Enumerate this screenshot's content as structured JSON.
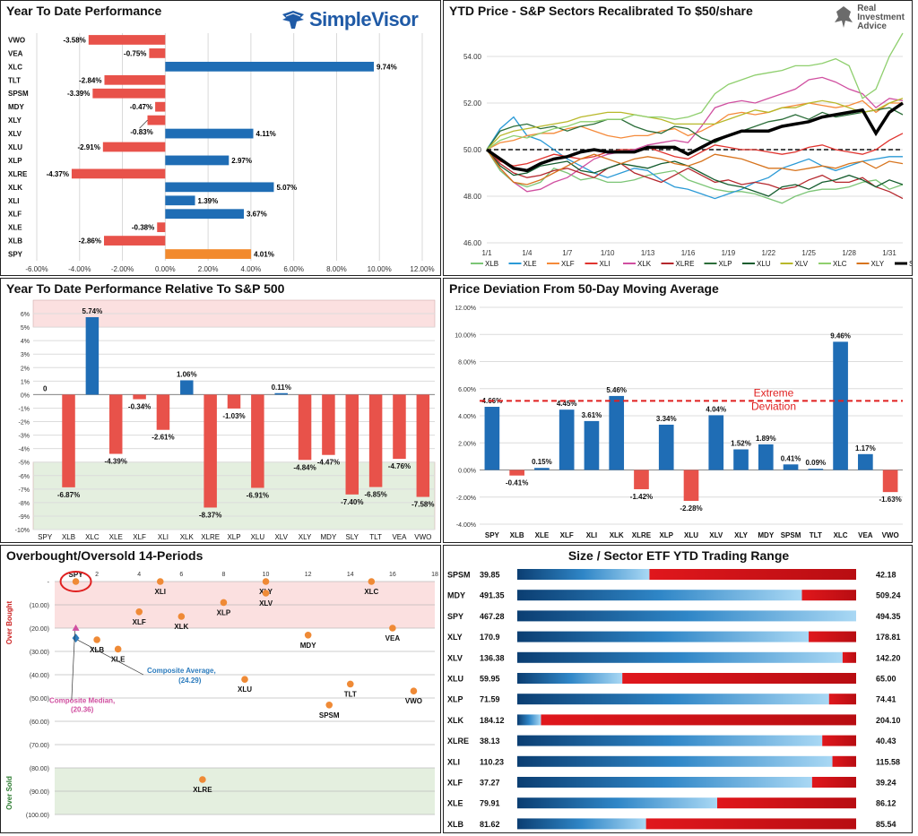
{
  "panels": {
    "ytd": {
      "title": "Year To Date Performance"
    },
    "price": {
      "title": "YTD Price - S&P Sectors Recalibrated To $50/share"
    },
    "rel": {
      "title": "Year To Date Performance Relative To S&P 500"
    },
    "dev": {
      "title": "Price Deviation From 50-Day Moving Average"
    },
    "obos": {
      "title": "Overbought/Oversold 14-Periods"
    },
    "range": {
      "title": "Size / Sector ETF YTD Trading Range"
    }
  },
  "logos": {
    "simplevisor": "SimpleVisor",
    "ria": [
      "Real",
      "Investment",
      "Advice"
    ]
  },
  "chart_data": [
    {
      "id": "ytd",
      "type": "bar",
      "orientation": "horizontal",
      "title": "Year To Date Performance",
      "categories": [
        "VWO",
        "VEA",
        "XLC",
        "TLT",
        "SPSM",
        "MDY",
        "XLY",
        "XLV",
        "XLU",
        "XLP",
        "XLRE",
        "XLK",
        "XLI",
        "XLF",
        "XLE",
        "XLB",
        "SPY"
      ],
      "values": [
        -3.58,
        -0.75,
        9.74,
        -2.84,
        -3.39,
        -0.47,
        -0.83,
        4.11,
        -2.91,
        2.97,
        -4.37,
        5.07,
        1.39,
        3.67,
        -0.38,
        -2.86,
        4.01
      ],
      "labels": [
        "-3.58%",
        "-0.75%",
        "9.74%",
        "-2.84%",
        "-3.39%",
        "-0.47%",
        "-0.83%",
        "4.11%",
        "-2.91%",
        "2.97%",
        "-4.37%",
        "5.07%",
        "1.39%",
        "3.67%",
        "-0.38%",
        "-2.86%",
        "4.01%"
      ],
      "xlim": [
        -6,
        12
      ],
      "xticks": [
        "-6.00%",
        "-4.00%",
        "-2.00%",
        "0.00%",
        "2.00%",
        "4.00%",
        "6.00%",
        "8.00%",
        "10.00%",
        "12.00%"
      ],
      "colors": {
        "positive": "#1f6db5",
        "negative": "#e8524a",
        "highlight": "#f28a2e"
      },
      "grid": true
    },
    {
      "id": "price",
      "type": "line",
      "title": "YTD Price - S&P Sectors Recalibrated To $50/share",
      "x": [
        "1/1",
        "1/2",
        "1/3",
        "1/4",
        "1/5",
        "1/6",
        "1/7",
        "1/8",
        "1/9",
        "1/10",
        "1/11",
        "1/12",
        "1/13",
        "1/14",
        "1/15",
        "1/16",
        "1/17",
        "1/18",
        "1/19",
        "1/20",
        "1/21",
        "1/22",
        "1/23",
        "1/24",
        "1/25",
        "1/26",
        "1/27",
        "1/28",
        "1/29",
        "1/30",
        "1/31",
        "2/1"
      ],
      "xticks": [
        "1/1",
        "1/4",
        "1/7",
        "1/10",
        "1/13",
        "1/16",
        "1/19",
        "1/22",
        "1/25",
        "1/28",
        "1/31"
      ],
      "ylim": [
        46,
        55
      ],
      "yticks": [
        "46.00",
        "48.00",
        "50.00",
        "52.00",
        "54.00"
      ],
      "reference_line": 50,
      "legend_position": "bottom",
      "series": [
        {
          "name": "XLB",
          "color": "#7cc576",
          "values": [
            50,
            49.1,
            48.6,
            48.4,
            48.6,
            49.2,
            49.0,
            48.7,
            48.8,
            48.6,
            48.6,
            48.7,
            48.9,
            49.0,
            49.1,
            48.7,
            48.5,
            48.3,
            48.2,
            48.2,
            48.1,
            47.9,
            47.7,
            48.0,
            48.2,
            48.3,
            48.3,
            48.4,
            48.6,
            48.7,
            48.3,
            48.5
          ]
        },
        {
          "name": "XLE",
          "color": "#2b9ad6",
          "values": [
            50,
            50.9,
            51.4,
            50.6,
            50.4,
            50.0,
            49.6,
            49.3,
            49.0,
            48.8,
            49.0,
            49.2,
            49.1,
            48.7,
            48.4,
            48.3,
            48.1,
            47.9,
            48.1,
            48.3,
            48.6,
            48.8,
            49.2,
            49.4,
            49.6,
            49.3,
            49.1,
            49.3,
            49.5,
            49.6,
            49.7,
            49.7
          ]
        },
        {
          "name": "XLF",
          "color": "#f58a3a",
          "values": [
            50,
            50.3,
            50.4,
            50.6,
            50.7,
            50.7,
            50.9,
            51.0,
            50.8,
            50.6,
            50.5,
            50.6,
            50.6,
            50.8,
            50.9,
            50.6,
            50.8,
            51.1,
            51.5,
            51.6,
            51.5,
            51.6,
            51.8,
            51.9,
            52.0,
            51.9,
            51.8,
            51.9,
            52.1,
            51.6,
            52.0,
            52.0
          ]
        },
        {
          "name": "XLI",
          "color": "#e0342f",
          "values": [
            50,
            49.5,
            49.3,
            49.4,
            49.6,
            49.8,
            49.7,
            49.6,
            49.7,
            49.9,
            50.0,
            50.0,
            50.1,
            49.9,
            49.7,
            49.6,
            49.9,
            50.2,
            50.1,
            50.0,
            50.0,
            49.9,
            49.8,
            49.9,
            50.1,
            50.2,
            50.0,
            49.9,
            49.8,
            50.0,
            50.4,
            50.7
          ]
        },
        {
          "name": "XLK",
          "color": "#d04fa0",
          "values": [
            50,
            49.2,
            48.6,
            48.2,
            48.3,
            48.6,
            48.8,
            49.2,
            49.6,
            49.8,
            49.9,
            50.0,
            50.2,
            50.3,
            50.4,
            50.3,
            51.0,
            51.8,
            52.0,
            52.1,
            52.0,
            52.2,
            52.4,
            52.6,
            53.0,
            53.1,
            52.9,
            52.6,
            52.4,
            51.8,
            52.2,
            52.1
          ]
        },
        {
          "name": "XLRE",
          "color": "#b5272d",
          "values": [
            50,
            49.4,
            49.0,
            48.8,
            48.9,
            49.1,
            49.2,
            49.0,
            48.8,
            49.2,
            49.4,
            49.0,
            48.8,
            48.6,
            48.9,
            49.2,
            48.9,
            48.6,
            48.7,
            48.5,
            48.6,
            48.5,
            48.3,
            48.4,
            48.7,
            48.9,
            48.6,
            48.6,
            48.8,
            48.4,
            48.2,
            47.9
          ]
        },
        {
          "name": "XLP",
          "color": "#2c6e3a",
          "values": [
            50,
            50.8,
            51.0,
            51.1,
            50.9,
            51.0,
            50.8,
            51.0,
            51.1,
            51.3,
            51.3,
            51.0,
            50.8,
            50.7,
            51.0,
            50.9,
            50.5,
            50.3,
            50.6,
            50.8,
            51.0,
            51.2,
            51.3,
            51.5,
            51.3,
            51.6,
            51.4,
            51.5,
            51.6,
            51.7,
            51.8,
            51.5
          ]
        },
        {
          "name": "XLU",
          "color": "#145c2e",
          "values": [
            50,
            49.3,
            48.9,
            49.0,
            49.3,
            49.4,
            49.5,
            49.1,
            49.0,
            49.2,
            49.4,
            49.3,
            49.2,
            49.4,
            49.5,
            49.3,
            49.0,
            48.7,
            48.5,
            48.4,
            48.2,
            48.0,
            48.4,
            48.5,
            48.3,
            48.6,
            48.7,
            48.9,
            48.7,
            48.4,
            48.7,
            48.5
          ]
        },
        {
          "name": "XLV",
          "color": "#b8b82a",
          "values": [
            50,
            50.6,
            50.8,
            50.9,
            51.0,
            51.1,
            51.2,
            51.4,
            51.5,
            51.6,
            51.6,
            51.5,
            51.4,
            51.3,
            51.1,
            51.1,
            51.1,
            51.1,
            51.3,
            51.5,
            51.7,
            51.6,
            51.8,
            51.8,
            52.0,
            52.1,
            52.0,
            51.8,
            51.6,
            51.7,
            52.0,
            52.2
          ]
        },
        {
          "name": "XLC",
          "color": "#8fcf6e",
          "values": [
            50,
            50.4,
            50.6,
            50.5,
            50.7,
            50.9,
            51.0,
            51.2,
            51.2,
            51.3,
            51.3,
            51.5,
            51.4,
            51.4,
            51.3,
            51.4,
            51.6,
            52.4,
            52.8,
            53.0,
            53.2,
            53.3,
            53.4,
            53.6,
            53.6,
            53.7,
            53.9,
            53.6,
            52.2,
            52.6,
            54.0,
            55.0
          ]
        },
        {
          "name": "XLY",
          "color": "#d7741e",
          "values": [
            50,
            49.2,
            48.6,
            48.5,
            48.7,
            49.0,
            49.3,
            49.6,
            49.8,
            49.6,
            49.4,
            49.6,
            49.7,
            49.6,
            49.4,
            49.3,
            49.5,
            49.8,
            49.7,
            49.6,
            49.4,
            49.2,
            49.2,
            49.1,
            49.2,
            49.3,
            49.2,
            49.4,
            49.5,
            49.2,
            49.5,
            49.4
          ]
        },
        {
          "name": "SPY",
          "color": "#000000",
          "values": [
            50,
            49.6,
            49.2,
            49.1,
            49.4,
            49.6,
            49.7,
            49.9,
            50.0,
            49.9,
            49.9,
            49.9,
            50.1,
            50.1,
            50.1,
            49.8,
            50.1,
            50.4,
            50.6,
            50.8,
            50.8,
            50.8,
            51.0,
            51.1,
            51.2,
            51.4,
            51.5,
            51.6,
            51.7,
            50.7,
            51.6,
            52.0
          ]
        }
      ]
    },
    {
      "id": "rel",
      "type": "bar",
      "title": "Year To Date Performance Relative To S&P 500",
      "categories": [
        "SPY",
        "XLB",
        "XLC",
        "XLE",
        "XLF",
        "XLI",
        "XLK",
        "XLRE",
        "XLP",
        "XLU",
        "XLV",
        "XLY",
        "MDY",
        "SLY",
        "TLT",
        "VEA",
        "VWO"
      ],
      "values": [
        0,
        -6.87,
        5.74,
        -4.39,
        -0.34,
        -2.61,
        1.06,
        -8.37,
        -1.03,
        -6.91,
        0.11,
        -4.84,
        -4.47,
        -7.4,
        -6.85,
        -4.76,
        -7.58
      ],
      "labels": [
        "0",
        "-6.87%",
        "5.74%",
        "-4.39%",
        "-0.34%",
        "-2.61%",
        "1.06%",
        "-8.37%",
        "-1.03%",
        "-6.91%",
        "0.11%",
        "-4.84%",
        "-4.47%",
        "-7.40%",
        "-6.85%",
        "-4.76%",
        "-7.58%"
      ],
      "ylim": [
        -10,
        7
      ],
      "yticks": [
        "6%",
        "5%",
        "4%",
        "3%",
        "2%",
        "1%",
        "0%",
        "-1%",
        "-2%",
        "-3%",
        "-4%",
        "-5%",
        "-6%",
        "-7%",
        "-8%",
        "-9%",
        "-10%"
      ],
      "bands": [
        {
          "from": 5,
          "to": 7,
          "color": "#fbe0e0"
        },
        {
          "from": -10,
          "to": -5,
          "color": "#e4efdf"
        }
      ],
      "colors": {
        "positive": "#1f6db5",
        "negative": "#e8524a"
      }
    },
    {
      "id": "dev",
      "type": "bar",
      "title": "Price Deviation From 50-Day Moving Average",
      "categories": [
        "SPY",
        "XLB",
        "XLE",
        "XLF",
        "XLI",
        "XLK",
        "XLRE",
        "XLP",
        "XLU",
        "XLV",
        "XLY",
        "MDY",
        "SPSM",
        "TLT",
        "XLC",
        "VEA",
        "VWO"
      ],
      "values": [
        4.66,
        -0.41,
        0.15,
        4.45,
        3.61,
        5.46,
        -1.42,
        3.34,
        -2.28,
        4.04,
        1.52,
        1.89,
        0.41,
        0.09,
        9.46,
        1.17,
        -1.63
      ],
      "labels": [
        "4.66%",
        "-0.41%",
        "0.15%",
        "4.45%",
        "3.61%",
        "5.46%",
        "-1.42%",
        "3.34%",
        "-2.28%",
        "4.04%",
        "1.52%",
        "1.89%",
        "0.41%",
        "0.09%",
        "9.46%",
        "1.17%",
        "-1.63%"
      ],
      "ylim": [
        -4,
        12
      ],
      "yticks": [
        "12.00%",
        "10.00%",
        "8.00%",
        "6.00%",
        "4.00%",
        "2.00%",
        "0.00%",
        "-2.00%",
        "-4.00%"
      ],
      "threshold": {
        "value": 5.1,
        "label": [
          "Extreme",
          "Deviation"
        ],
        "color": "#e02020"
      },
      "colors": {
        "positive": "#1f6db5",
        "negative": "#e8524a"
      }
    },
    {
      "id": "obos",
      "type": "scatter",
      "title": "Overbought/Oversold 14-Periods",
      "xlim": [
        0,
        18
      ],
      "xticks": [
        "2",
        "4",
        "6",
        "8",
        "10",
        "12",
        "14",
        "16",
        "18"
      ],
      "ylim": [
        0,
        100
      ],
      "yticks": [
        "-",
        "(10.00)",
        "(20.00)",
        "(30.00)",
        "(40.00)",
        "(50.00)",
        "(60.00)",
        "(70.00)",
        "(80.00)",
        "(90.00)",
        "(100.00)"
      ],
      "side_labels": {
        "top": "Over Bought",
        "bottom": "Over Sold"
      },
      "bands": [
        {
          "from": 0,
          "to": 20,
          "color": "#fbe0e0"
        },
        {
          "from": 80,
          "to": 100,
          "color": "#e4efdf"
        }
      ],
      "points": [
        {
          "label": "SPY",
          "x": 1,
          "y": 0
        },
        {
          "label": "XLI",
          "x": 5,
          "y": 0
        },
        {
          "label": "XLY",
          "x": 10,
          "y": 0
        },
        {
          "label": "XLV",
          "x": 10,
          "y": 5
        },
        {
          "label": "XLC",
          "x": 15,
          "y": 0
        },
        {
          "label": "XLP",
          "x": 8,
          "y": 9
        },
        {
          "label": "XLF",
          "x": 4,
          "y": 13
        },
        {
          "label": "XLK",
          "x": 6,
          "y": 15
        },
        {
          "label": "VEA",
          "x": 16,
          "y": 20
        },
        {
          "label": "MDY",
          "x": 12,
          "y": 23
        },
        {
          "label": "XLB",
          "x": 2,
          "y": 25
        },
        {
          "label": "XLE",
          "x": 3,
          "y": 29
        },
        {
          "label": "XLU",
          "x": 9,
          "y": 42
        },
        {
          "label": "TLT",
          "x": 14,
          "y": 44
        },
        {
          "label": "VWO",
          "x": 17,
          "y": 47
        },
        {
          "label": "SPSM",
          "x": 13,
          "y": 53
        },
        {
          "label": "XLRE",
          "x": 7,
          "y": 85
        }
      ],
      "composite_average": {
        "label": "Composite Average,",
        "value_label": "(24.29)",
        "value": 24.29,
        "color": "#2b7bbd"
      },
      "composite_median": {
        "label": "Composite Median,",
        "value_label": "(20.36)",
        "value": 20.36,
        "color": "#d04fa0"
      }
    },
    {
      "id": "range",
      "type": "bar",
      "title": "Size / Sector ETF YTD Trading Range",
      "categories": [
        "SPSM",
        "MDY",
        "SPY",
        "XLY",
        "XLV",
        "XLU",
        "XLP",
        "XLK",
        "XLRE",
        "XLI",
        "XLF",
        "XLE",
        "XLB"
      ],
      "low": [
        "39.85",
        "491.35",
        "467.28",
        "170.9",
        "136.38",
        "59.95",
        "71.59",
        "184.12",
        "38.13",
        "110.23",
        "37.27",
        "79.91",
        "81.62"
      ],
      "high": [
        "42.18",
        "509.24",
        "494.35",
        "178.81",
        "142.20",
        "65.00",
        "74.41",
        "204.10",
        "40.43",
        "115.58",
        "39.24",
        "86.12",
        "85.54"
      ],
      "position_pct": [
        0.39,
        0.84,
        1.0,
        0.86,
        0.96,
        0.31,
        0.92,
        0.07,
        0.9,
        0.93,
        0.87,
        0.59,
        0.38
      ]
    }
  ]
}
